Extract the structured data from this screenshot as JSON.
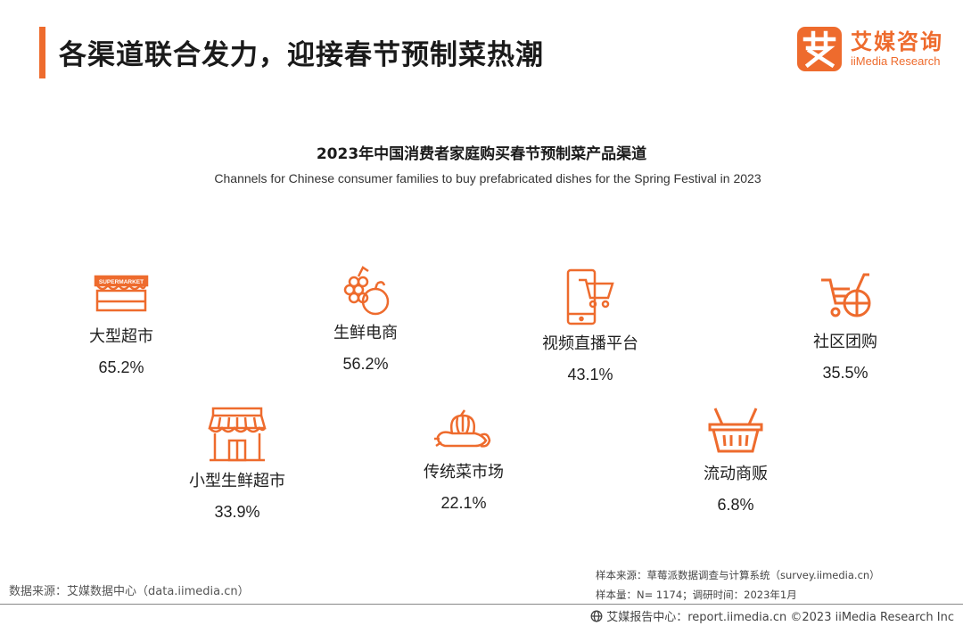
{
  "header": {
    "title": "各渠道联合发力，迎接春节预制菜热潮",
    "logo_cn": "艾媒咨询",
    "logo_en": "iiMedia Research",
    "accent_color": "#ee6b2d"
  },
  "chart_data": {
    "type": "table",
    "title": "2023年中国消费者家庭购买春节预制菜产品渠道",
    "subtitle": "Channels for Chinese consumer families to buy prefabricated dishes for the Spring Festival in 2023",
    "unit": "%",
    "categories": [
      "大型超市",
      "生鲜电商",
      "视频直播平台",
      "社区团购",
      "小型生鲜超市",
      "传统菜市场",
      "流动商贩"
    ],
    "values": [
      65.2,
      56.2,
      43.1,
      35.5,
      33.9,
      22.1,
      6.8
    ],
    "items": [
      {
        "name": "大型超市",
        "value": "65.2%",
        "icon": "supermarket-icon"
      },
      {
        "name": "生鲜电商",
        "value": "56.2%",
        "icon": "fruit-icon"
      },
      {
        "name": "视频直播平台",
        "value": "43.1%",
        "icon": "phone-cart-icon"
      },
      {
        "name": "社区团购",
        "value": "35.5%",
        "icon": "cart-icon"
      },
      {
        "name": "小型生鲜超市",
        "value": "33.9%",
        "icon": "storefront-icon"
      },
      {
        "name": "传统菜市场",
        "value": "22.1%",
        "icon": "vegetables-icon"
      },
      {
        "name": "流动商贩",
        "value": "6.8%",
        "icon": "basket-icon"
      }
    ]
  },
  "footer": {
    "source": "数据来源：艾媒数据中心（data.iimedia.cn）",
    "sample_source": "样本来源：草莓派数据调查与计算系统（survey.iimedia.cn）",
    "sample_size": "样本量：N= 1174；调研时间：2023年1月",
    "copyright": "艾媒报告中心：report.iimedia.cn   ©2023  iiMedia Research  Inc"
  }
}
